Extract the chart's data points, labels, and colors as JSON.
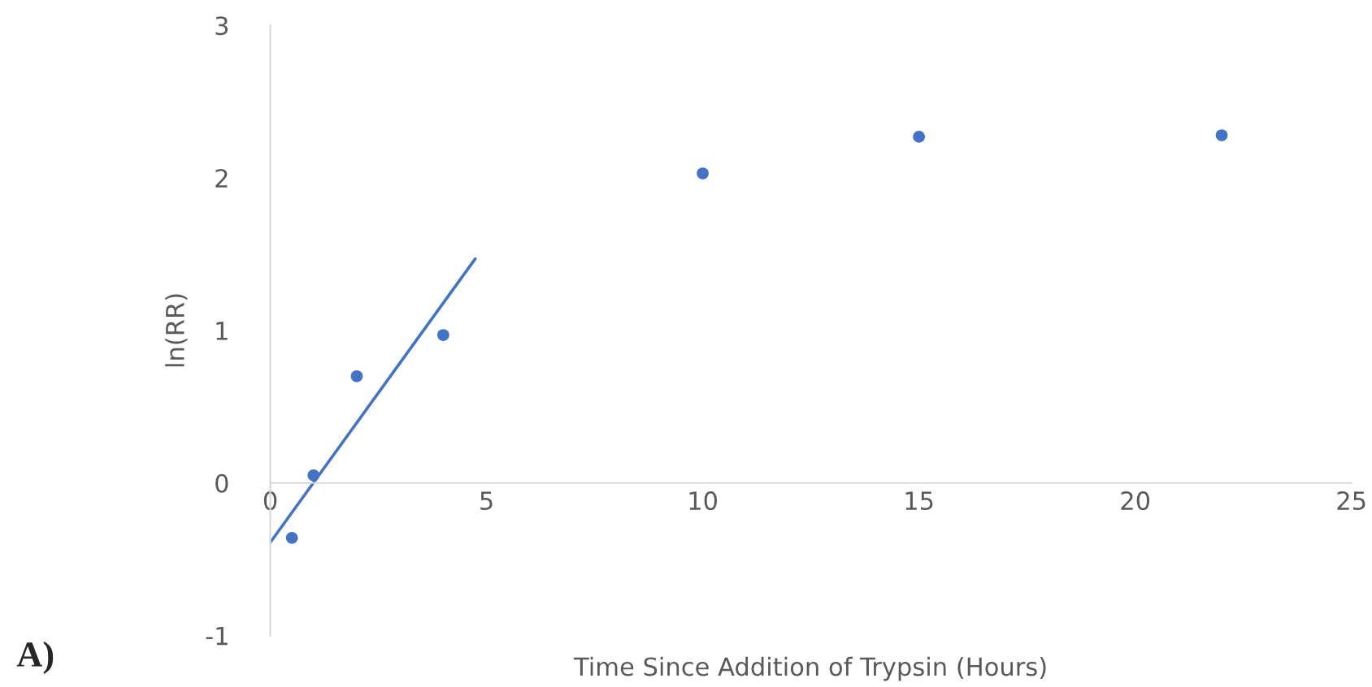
{
  "chart_data": {
    "type": "scatter",
    "xlabel": "Time Since Addition of Trypsin (Hours)",
    "ylabel": "ln(RR)",
    "series": [
      {
        "color": "#4472c4",
        "marker": "circle",
        "x": [
          0.5,
          1,
          2,
          4,
          10,
          15,
          22
        ],
        "values": [
          -0.36,
          0.05,
          0.7,
          0.97,
          2.03,
          2.27,
          2.28
        ]
      },
      {
        "type": "line",
        "marker": "none",
        "color": "#4472c4",
        "x": [
          0,
          4.74
        ],
        "values": [
          -0.39,
          1.47
        ]
      }
    ],
    "xlim": [
      0,
      25
    ],
    "xticks": [
      0,
      5,
      10,
      15,
      20,
      25
    ],
    "ylim": [
      -1,
      3
    ],
    "yticks": [
      -1,
      0,
      1,
      2,
      3
    ],
    "grid": false,
    "legend": false,
    "annotations": [
      "A)"
    ]
  }
}
